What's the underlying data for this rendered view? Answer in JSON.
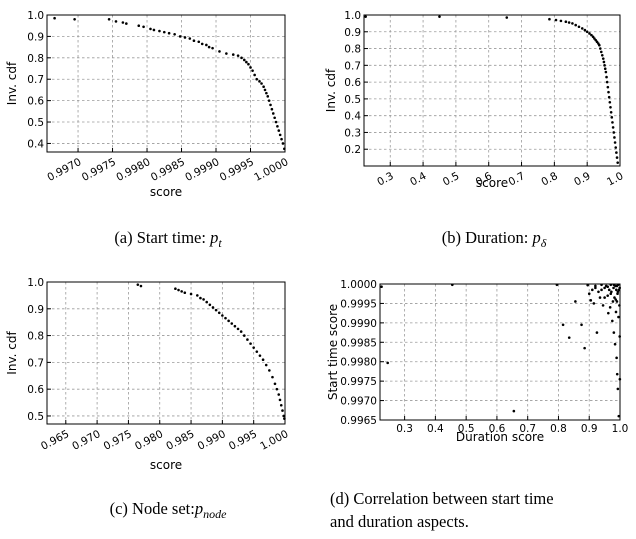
{
  "chart_data": [
    {
      "id": "a",
      "type": "scatter",
      "xlabel": "score",
      "ylabel": "Inv. cdf",
      "xlim": [
        0.99655,
        1.0
      ],
      "ylim": [
        0.36,
        1.0
      ],
      "xticks": [
        "0.9970",
        "0.9975",
        "0.9980",
        "0.9985",
        "0.9990",
        "0.9995",
        "1.0000"
      ],
      "yticks": [
        "0.4",
        "0.5",
        "0.6",
        "0.7",
        "0.8",
        "0.9",
        "1.0"
      ],
      "xtick_values": [
        0.997,
        0.9975,
        0.998,
        0.9985,
        0.999,
        0.9995,
        1.0
      ],
      "ytick_values": [
        0.4,
        0.5,
        0.6,
        0.7,
        0.8,
        0.9,
        1.0
      ],
      "x_rotated": true,
      "grid": true,
      "caption": {
        "prefix": "(a) Start time: ",
        "var": "p",
        "sub": "t"
      },
      "points": [
        [
          0.99666,
          0.985
        ],
        [
          0.99695,
          0.98
        ],
        [
          0.99745,
          0.98
        ],
        [
          0.99755,
          0.97
        ],
        [
          0.99765,
          0.965
        ],
        [
          0.9977,
          0.96
        ],
        [
          0.99788,
          0.95
        ],
        [
          0.99795,
          0.945
        ],
        [
          0.99805,
          0.935
        ],
        [
          0.9981,
          0.93
        ],
        [
          0.99818,
          0.925
        ],
        [
          0.99825,
          0.92
        ],
        [
          0.99832,
          0.915
        ],
        [
          0.9984,
          0.91
        ],
        [
          0.99848,
          0.9
        ],
        [
          0.99855,
          0.895
        ],
        [
          0.99862,
          0.89
        ],
        [
          0.99868,
          0.88
        ],
        [
          0.99875,
          0.875
        ],
        [
          0.9988,
          0.865
        ],
        [
          0.99886,
          0.86
        ],
        [
          0.9989,
          0.85
        ],
        [
          0.99895,
          0.845
        ],
        [
          0.99905,
          0.83
        ],
        [
          0.99915,
          0.82
        ],
        [
          0.99925,
          0.815
        ],
        [
          0.99932,
          0.81
        ],
        [
          0.99937,
          0.8
        ],
        [
          0.99941,
          0.79
        ],
        [
          0.99944,
          0.78
        ],
        [
          0.99947,
          0.77
        ],
        [
          0.9995,
          0.755
        ],
        [
          0.99953,
          0.74
        ],
        [
          0.99956,
          0.72
        ],
        [
          0.99959,
          0.7
        ],
        [
          0.99963,
          0.69
        ],
        [
          0.99966,
          0.68
        ],
        [
          0.99969,
          0.665
        ],
        [
          0.99971,
          0.65
        ],
        [
          0.99973,
          0.635
        ],
        [
          0.99975,
          0.62
        ],
        [
          0.99977,
          0.6
        ],
        [
          0.99979,
          0.58
        ],
        [
          0.99981,
          0.56
        ],
        [
          0.99983,
          0.54
        ],
        [
          0.99985,
          0.52
        ],
        [
          0.99987,
          0.5
        ],
        [
          0.99989,
          0.48
        ],
        [
          0.99991,
          0.46
        ],
        [
          0.99993,
          0.44
        ],
        [
          0.99995,
          0.42
        ],
        [
          0.99997,
          0.4
        ],
        [
          0.99999,
          0.375
        ]
      ]
    },
    {
      "id": "b",
      "type": "scatter",
      "xlabel": "score",
      "ylabel": "Inv. cdf",
      "xlim": [
        0.22,
        1.0
      ],
      "ylim": [
        0.1,
        1.0
      ],
      "xticks": [
        "0.3",
        "0.4",
        "0.5",
        "0.6",
        "0.7",
        "0.8",
        "0.9",
        "1.0"
      ],
      "yticks": [
        "0.2",
        "0.3",
        "0.4",
        "0.5",
        "0.6",
        "0.7",
        "0.8",
        "0.9",
        "1.0"
      ],
      "xtick_values": [
        0.3,
        0.4,
        0.5,
        0.6,
        0.7,
        0.8,
        0.9,
        1.0
      ],
      "ytick_values": [
        0.2,
        0.3,
        0.4,
        0.5,
        0.6,
        0.7,
        0.8,
        0.9,
        1.0
      ],
      "x_rotated": true,
      "grid": true,
      "caption": {
        "prefix": "(b) Duration: ",
        "var": "p",
        "sub": "δ"
      },
      "points": [
        [
          0.225,
          0.99
        ],
        [
          0.45,
          0.99
        ],
        [
          0.655,
          0.985
        ],
        [
          0.785,
          0.975
        ],
        [
          0.805,
          0.97
        ],
        [
          0.82,
          0.965
        ],
        [
          0.835,
          0.96
        ],
        [
          0.845,
          0.955
        ],
        [
          0.855,
          0.95
        ],
        [
          0.865,
          0.94
        ],
        [
          0.875,
          0.93
        ],
        [
          0.885,
          0.92
        ],
        [
          0.893,
          0.91
        ],
        [
          0.9,
          0.9
        ],
        [
          0.907,
          0.89
        ],
        [
          0.913,
          0.88
        ],
        [
          0.918,
          0.87
        ],
        [
          0.922,
          0.86
        ],
        [
          0.926,
          0.85
        ],
        [
          0.93,
          0.84
        ],
        [
          0.934,
          0.83
        ],
        [
          0.937,
          0.82
        ],
        [
          0.94,
          0.8
        ],
        [
          0.943,
          0.78
        ],
        [
          0.946,
          0.76
        ],
        [
          0.949,
          0.74
        ],
        [
          0.951,
          0.72
        ],
        [
          0.953,
          0.7
        ],
        [
          0.955,
          0.68
        ],
        [
          0.957,
          0.66
        ],
        [
          0.959,
          0.63
        ],
        [
          0.961,
          0.6
        ],
        [
          0.963,
          0.57
        ],
        [
          0.965,
          0.54
        ],
        [
          0.967,
          0.51
        ],
        [
          0.969,
          0.48
        ],
        [
          0.971,
          0.45
        ],
        [
          0.973,
          0.42
        ],
        [
          0.975,
          0.39
        ],
        [
          0.977,
          0.36
        ],
        [
          0.979,
          0.33
        ],
        [
          0.981,
          0.3
        ],
        [
          0.983,
          0.27
        ],
        [
          0.985,
          0.24
        ],
        [
          0.987,
          0.21
        ],
        [
          0.989,
          0.18
        ],
        [
          0.991,
          0.15
        ],
        [
          0.993,
          0.12
        ]
      ]
    },
    {
      "id": "c",
      "type": "scatter",
      "xlabel": "score",
      "ylabel": "Inv. cdf",
      "xlim": [
        0.962,
        1.0
      ],
      "ylim": [
        0.47,
        1.0
      ],
      "xticks": [
        "0.965",
        "0.970",
        "0.975",
        "0.980",
        "0.985",
        "0.990",
        "0.995",
        "1.000"
      ],
      "yticks": [
        "0.5",
        "0.6",
        "0.7",
        "0.8",
        "0.9",
        "1.0"
      ],
      "xtick_values": [
        0.965,
        0.97,
        0.975,
        0.98,
        0.985,
        0.99,
        0.995,
        1.0
      ],
      "ytick_values": [
        0.5,
        0.6,
        0.7,
        0.8,
        0.9,
        1.0
      ],
      "x_rotated": true,
      "grid": true,
      "caption": {
        "prefix": "(c) Node set:",
        "var": "p",
        "sub": "node"
      },
      "points": [
        [
          0.9765,
          0.99
        ],
        [
          0.977,
          0.985
        ],
        [
          0.9825,
          0.975
        ],
        [
          0.983,
          0.97
        ],
        [
          0.9835,
          0.965
        ],
        [
          0.984,
          0.96
        ],
        [
          0.985,
          0.955
        ],
        [
          0.986,
          0.95
        ],
        [
          0.9865,
          0.94
        ],
        [
          0.987,
          0.935
        ],
        [
          0.9875,
          0.925
        ],
        [
          0.988,
          0.915
        ],
        [
          0.9885,
          0.905
        ],
        [
          0.989,
          0.895
        ],
        [
          0.9895,
          0.885
        ],
        [
          0.99,
          0.875
        ],
        [
          0.9905,
          0.865
        ],
        [
          0.991,
          0.855
        ],
        [
          0.9915,
          0.845
        ],
        [
          0.992,
          0.835
        ],
        [
          0.9925,
          0.825
        ],
        [
          0.993,
          0.815
        ],
        [
          0.9935,
          0.8
        ],
        [
          0.994,
          0.785
        ],
        [
          0.9945,
          0.77
        ],
        [
          0.995,
          0.755
        ],
        [
          0.9955,
          0.74
        ],
        [
          0.996,
          0.725
        ],
        [
          0.9965,
          0.71
        ],
        [
          0.997,
          0.69
        ],
        [
          0.9975,
          0.67
        ],
        [
          0.998,
          0.645
        ],
        [
          0.9984,
          0.62
        ],
        [
          0.9987,
          0.6
        ],
        [
          0.999,
          0.58
        ],
        [
          0.9992,
          0.56
        ],
        [
          0.9994,
          0.54
        ],
        [
          0.9996,
          0.52
        ],
        [
          0.9998,
          0.5
        ],
        [
          0.9999,
          0.49
        ]
      ]
    },
    {
      "id": "d",
      "type": "scatter",
      "xlabel": "Duration score",
      "ylabel": "Start time score",
      "xlim": [
        0.22,
        1.0
      ],
      "ylim": [
        0.9965,
        1.0
      ],
      "xticks": [
        "0.3",
        "0.4",
        "0.5",
        "0.6",
        "0.7",
        "0.8",
        "0.9",
        "1.0"
      ],
      "yticks": [
        "0.9965",
        "0.9970",
        "0.9975",
        "0.9980",
        "0.9985",
        "0.9990",
        "0.9995",
        "1.0000"
      ],
      "xtick_values": [
        0.3,
        0.4,
        0.5,
        0.6,
        0.7,
        0.8,
        0.9,
        1.0
      ],
      "ytick_values": [
        0.9965,
        0.997,
        0.9975,
        0.998,
        0.9985,
        0.999,
        0.9995,
        1.0
      ],
      "x_rotated": false,
      "grid": true,
      "caption": {
        "prefix": "(d) Correlation between start time",
        "line2": "and duration aspects."
      },
      "points": [
        [
          0.225,
          0.99993
        ],
        [
          0.245,
          0.99797
        ],
        [
          0.455,
          0.99998
        ],
        [
          0.655,
          0.99673
        ],
        [
          0.795,
          0.99998
        ],
        [
          0.815,
          0.99895
        ],
        [
          0.835,
          0.99862
        ],
        [
          0.855,
          0.99955
        ],
        [
          0.875,
          0.99895
        ],
        [
          0.885,
          0.99835
        ],
        [
          0.895,
          0.99997
        ],
        [
          0.9,
          0.99975
        ],
        [
          0.905,
          0.99958
        ],
        [
          0.91,
          0.99985
        ],
        [
          0.915,
          0.9995
        ],
        [
          0.92,
          0.99995
        ],
        [
          0.925,
          0.99875
        ],
        [
          0.93,
          0.9998
        ],
        [
          0.935,
          0.99965
        ],
        [
          0.94,
          0.99985
        ],
        [
          0.945,
          0.99945
        ],
        [
          0.95,
          0.9999
        ],
        [
          0.955,
          0.99995
        ],
        [
          0.96,
          0.9997
        ],
        [
          0.962,
          0.99925
        ],
        [
          0.965,
          0.99985
        ],
        [
          0.968,
          0.9994
        ],
        [
          0.97,
          0.99998
        ],
        [
          0.972,
          0.9998
        ],
        [
          0.975,
          0.99905
        ],
        [
          0.977,
          0.99955
        ],
        [
          0.979,
          0.9999
        ],
        [
          0.98,
          0.99875
        ],
        [
          0.982,
          0.99965
        ],
        [
          0.984,
          0.99845
        ],
        [
          0.985,
          0.99995
        ],
        [
          0.987,
          0.99928
        ],
        [
          0.988,
          0.99985
        ],
        [
          0.989,
          0.9981
        ],
        [
          0.99,
          0.99955
        ],
        [
          0.991,
          0.99768
        ],
        [
          0.992,
          0.99975
        ],
        [
          0.993,
          0.9973
        ],
        [
          0.994,
          0.99998
        ],
        [
          0.995,
          0.99915
        ],
        [
          0.996,
          0.9966
        ],
        [
          0.997,
          0.99985
        ],
        [
          0.998,
          0.99945
        ],
        [
          0.999,
          0.9999
        ],
        [
          0.999,
          0.99865
        ],
        [
          0.9995,
          0.99755
        ],
        [
          0.92,
          0.9999
        ],
        [
          0.94,
          0.99998
        ],
        [
          0.96,
          0.99993
        ],
        [
          0.98,
          0.99998
        ],
        [
          0.97,
          0.99975
        ],
        [
          0.95,
          0.99965
        ],
        [
          0.99,
          0.99995
        ],
        [
          0.986,
          0.9996
        ],
        [
          0.993,
          0.9998
        ]
      ]
    }
  ]
}
